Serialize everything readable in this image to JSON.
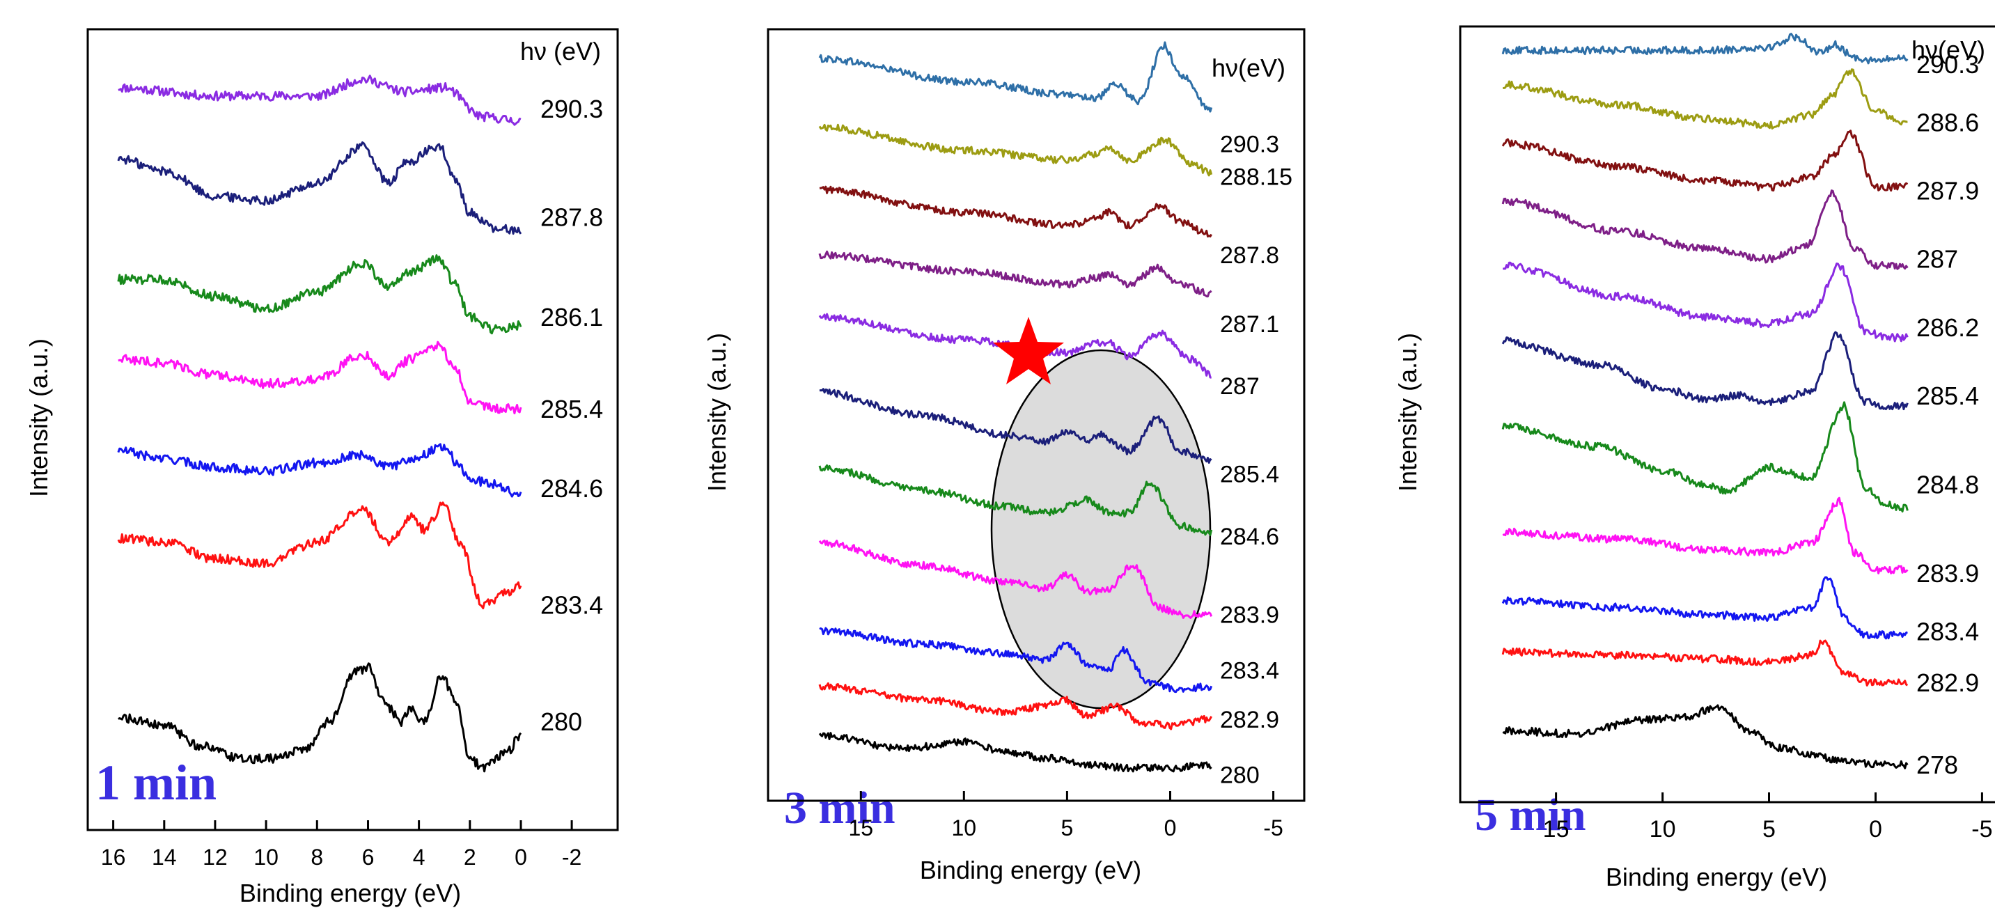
{
  "chart_data": [
    {
      "type": "line",
      "panel_label": "1 min",
      "xlabel": "Binding energy (eV)",
      "ylabel": "Intensity (a.u.)",
      "legend_title": "hν (eV)",
      "xlim": [
        17,
        -3.8
      ],
      "xticks": [
        16,
        14,
        12,
        10,
        8,
        6,
        4,
        2,
        0,
        -2
      ],
      "xtick_labels": [
        "16",
        "14",
        "12",
        "10",
        "8",
        "6",
        "4",
        "2",
        "0",
        "-2"
      ],
      "series": [
        {
          "name": "290.3",
          "color": "#8a2be2",
          "offset": 6.3,
          "label_offset": 6.05,
          "x": [
            15.8,
            12,
            8,
            6.2,
            4.5,
            3,
            1.5,
            0
          ],
          "y": [
            0.0,
            -0.1,
            -0.1,
            0.1,
            -0.05,
            0.0,
            -0.35,
            -0.4
          ]
        },
        {
          "name": "287.8",
          "color": "#1b1f7a",
          "offset": 5.1,
          "label_offset": 4.75,
          "x": [
            15.8,
            14,
            12,
            10,
            8,
            6.2,
            5.2,
            4.5,
            3.2,
            2.6,
            2,
            1,
            0
          ],
          "y": [
            0.35,
            0.2,
            -0.1,
            -0.15,
            0.05,
            0.5,
            0.05,
            0.3,
            0.5,
            0.1,
            -0.3,
            -0.5,
            -0.5
          ]
        },
        {
          "name": "286.1",
          "color": "#17891b",
          "offset": 3.95,
          "label_offset": 3.55,
          "x": [
            15.8,
            14,
            12,
            10,
            8,
            6.2,
            5.2,
            4.3,
            3.2,
            2.6,
            2,
            1,
            0
          ],
          "y": [
            0.05,
            0.05,
            -0.15,
            -0.3,
            -0.1,
            0.25,
            -0.05,
            0.15,
            0.3,
            0.0,
            -0.4,
            -0.55,
            -0.5
          ]
        },
        {
          "name": "285.4",
          "color": "#ff12f3",
          "offset": 2.95,
          "label_offset": 2.45,
          "x": [
            15.8,
            14,
            12,
            10,
            8,
            6.2,
            5.2,
            4.3,
            3.2,
            2.6,
            2,
            1,
            0
          ],
          "y": [
            0.1,
            0.05,
            -0.1,
            -0.2,
            -0.15,
            0.15,
            -0.1,
            0.1,
            0.25,
            0.0,
            -0.4,
            -0.5,
            -0.5
          ]
        },
        {
          "name": "284.6",
          "color": "#1316f0",
          "offset": 1.85,
          "label_offset": 1.5,
          "x": [
            15.8,
            14,
            12,
            10,
            8,
            6.2,
            5.2,
            4.3,
            3.0,
            2.4,
            2,
            1,
            0
          ],
          "y": [
            0.1,
            0.0,
            -0.1,
            -0.15,
            -0.05,
            0.05,
            -0.1,
            0.0,
            0.15,
            -0.1,
            -0.25,
            -0.3,
            -0.45
          ]
        },
        {
          "name": "283.4",
          "color": "#ff1111",
          "offset": 0.85,
          "label_offset": 0.1,
          "x": [
            15.8,
            14,
            12,
            10,
            8,
            6.2,
            5.2,
            4.3,
            3.8,
            3.0,
            2.4,
            1.5,
            0.5,
            0
          ],
          "y": [
            0.05,
            0.0,
            -0.2,
            -0.25,
            0.0,
            0.4,
            0.0,
            0.3,
            0.15,
            0.45,
            0.0,
            -0.75,
            -0.6,
            -0.5
          ]
        },
        {
          "name": "280",
          "color": "#000000",
          "offset": -1.3,
          "label_offset": -1.3,
          "x": [
            15.8,
            14,
            12.5,
            11,
            10,
            8.5,
            7.5,
            6.5,
            6,
            5.3,
            4.7,
            4.3,
            3.8,
            3.1,
            2.5,
            2,
            1.5,
            0.5,
            0
          ],
          "y": [
            0.05,
            -0.05,
            -0.3,
            -0.45,
            -0.45,
            -0.35,
            0.0,
            0.6,
            0.65,
            0.2,
            0.0,
            0.15,
            0.0,
            0.55,
            0.2,
            -0.45,
            -0.55,
            -0.35,
            -0.15
          ]
        }
      ]
    },
    {
      "type": "line",
      "panel_label": "3 min",
      "xlabel": "Binding energy (eV)",
      "ylabel": "Intensity (a.u.)",
      "legend_title": "hν(eV)",
      "xlim": [
        19.5,
        -6.5
      ],
      "xticks": [
        15,
        10,
        5,
        0,
        -5
      ],
      "xtick_labels": [
        "15",
        "10",
        "5",
        "0",
        "-5"
      ],
      "series": [
        {
          "name": "290.3",
          "color": "#2e6fa7",
          "offset": 10.9,
          "label_offset": 10.05,
          "x": [
            17,
            10,
            5,
            3.5,
            2.7,
            1.5,
            0.3,
            -0.5,
            -2
          ],
          "y": [
            0.45,
            0.1,
            -0.1,
            -0.15,
            0.05,
            -0.2,
            0.65,
            0.2,
            -0.35
          ]
        },
        {
          "name": "288.15",
          "color": "#9c9c12",
          "offset": 9.95,
          "label_offset": 9.55,
          "x": [
            17,
            10,
            5,
            3.5,
            3,
            2,
            0.2,
            -1,
            -2
          ],
          "y": [
            0.35,
            0.0,
            -0.15,
            -0.05,
            0.05,
            -0.15,
            0.15,
            -0.2,
            -0.35
          ]
        },
        {
          "name": "287.8",
          "color": "#821011",
          "offset": 9.0,
          "label_offset": 8.35,
          "x": [
            17,
            10,
            5,
            3.5,
            3,
            2,
            0.5,
            -0.5,
            -2
          ],
          "y": [
            0.35,
            0.0,
            -0.2,
            -0.1,
            0.0,
            -0.2,
            0.1,
            -0.15,
            -0.35
          ]
        },
        {
          "name": "287.1",
          "color": "#7e1f87",
          "offset": 8.1,
          "label_offset": 7.3,
          "x": [
            17,
            10,
            5,
            3.5,
            3,
            2,
            0.6,
            -0.5,
            -2
          ],
          "y": [
            0.25,
            0.0,
            -0.2,
            -0.1,
            -0.05,
            -0.2,
            0.05,
            -0.2,
            -0.35
          ]
        },
        {
          "name": "287",
          "color": "#8a2be2",
          "offset": 7.1,
          "label_offset": 6.35,
          "x": [
            17,
            10,
            5,
            3.5,
            3,
            2,
            0.5,
            -1,
            -2
          ],
          "y": [
            0.3,
            -0.05,
            -0.25,
            -0.1,
            -0.1,
            -0.3,
            0.05,
            -0.35,
            -0.6
          ]
        },
        {
          "name": "285.4",
          "color": "#1b1f7a",
          "offset": 5.9,
          "label_offset": 5.0,
          "x": [
            17,
            12,
            8,
            6,
            5,
            4,
            3.5,
            2,
            0.6,
            -0.5,
            -2
          ],
          "y": [
            0.35,
            0.0,
            -0.3,
            -0.4,
            -0.25,
            -0.4,
            -0.3,
            -0.55,
            -0.05,
            -0.55,
            -0.7
          ]
        },
        {
          "name": "284.6",
          "color": "#17891b",
          "offset": 4.75,
          "label_offset": 4.05,
          "x": [
            17,
            12,
            8,
            6,
            4,
            3,
            2,
            1,
            -0.5,
            -2
          ],
          "y": [
            0.35,
            0.0,
            -0.25,
            -0.35,
            -0.15,
            -0.35,
            -0.35,
            0.1,
            -0.55,
            -0.65
          ]
        },
        {
          "name": "283.9",
          "color": "#ff12f3",
          "offset": 3.55,
          "label_offset": 2.85,
          "x": [
            17,
            12,
            8,
            6,
            5,
            4,
            3,
            1.8,
            0.5,
            -0.5,
            -2
          ],
          "y": [
            0.4,
            0.05,
            -0.2,
            -0.3,
            -0.1,
            -0.35,
            -0.3,
            0.05,
            -0.6,
            -0.7,
            -0.7
          ]
        },
        {
          "name": "283.4",
          "color": "#1316f0",
          "offset": 2.35,
          "label_offset": 2.0,
          "x": [
            17,
            12,
            8,
            6,
            5,
            4,
            3,
            2.3,
            1,
            -0.5,
            -2
          ],
          "y": [
            0.25,
            0.05,
            -0.1,
            -0.2,
            0.05,
            -0.25,
            -0.35,
            -0.05,
            -0.55,
            -0.65,
            -0.6
          ]
        },
        {
          "name": "282.9",
          "color": "#ff1111",
          "offset": 1.6,
          "label_offset": 1.25,
          "x": [
            17,
            12,
            8,
            6,
            5.2,
            4,
            2.6,
            1.5,
            0,
            -2
          ],
          "y": [
            0.15,
            -0.05,
            -0.25,
            -0.15,
            -0.05,
            -0.3,
            -0.15,
            -0.4,
            -0.45,
            -0.35
          ]
        },
        {
          "name": "280",
          "color": "#000000",
          "offset": 0.9,
          "label_offset": 0.4,
          "x": [
            17,
            13,
            10,
            8,
            6,
            4,
            2,
            0,
            -2
          ],
          "y": [
            0.1,
            -0.1,
            0.0,
            -0.15,
            -0.25,
            -0.35,
            -0.4,
            -0.4,
            -0.35
          ]
        }
      ]
    },
    {
      "type": "line",
      "panel_label": "5 min",
      "xlabel": "Binding energy (eV)",
      "ylabel": "Intensity (a.u.)",
      "legend_title": "hν(eV)",
      "xlim": [
        19.5,
        -6
      ],
      "xticks": [
        15,
        10,
        5,
        0,
        -5
      ],
      "xtick_labels": [
        "15",
        "10",
        "5",
        "0",
        "-5"
      ],
      "series": [
        {
          "name": "290.3",
          "color": "#2e6fa7",
          "offset": 10.95,
          "label_offset": 10.8,
          "x": [
            17.5,
            12,
            8,
            5,
            3.8,
            2.5,
            2,
            1,
            0,
            -1.5
          ],
          "y": [
            0.05,
            0.05,
            0.05,
            0.1,
            0.25,
            0.0,
            0.15,
            -0.05,
            -0.1,
            -0.05
          ]
        },
        {
          "name": "288.6",
          "color": "#9c9c12",
          "offset": 10.15,
          "label_offset": 9.95,
          "x": [
            17.5,
            12,
            8,
            5,
            3,
            2,
            1.2,
            0,
            -1.5
          ],
          "y": [
            0.35,
            0.05,
            -0.15,
            -0.25,
            -0.1,
            0.2,
            0.55,
            -0.05,
            -0.2
          ]
        },
        {
          "name": "287.9",
          "color": "#821011",
          "offset": 9.3,
          "label_offset": 8.95,
          "x": [
            17.5,
            12,
            8,
            5,
            3,
            2,
            1.2,
            0,
            -1.5
          ],
          "y": [
            0.35,
            0.0,
            -0.2,
            -0.3,
            -0.15,
            0.15,
            0.5,
            -0.3,
            -0.3
          ]
        },
        {
          "name": "287",
          "color": "#7e1f87",
          "offset": 8.35,
          "label_offset": 7.95,
          "x": [
            17.5,
            12,
            8,
            5,
            3.2,
            2,
            1,
            0,
            -1.5
          ],
          "y": [
            0.45,
            0.0,
            -0.25,
            -0.4,
            -0.2,
            0.55,
            -0.25,
            -0.5,
            -0.5
          ]
        },
        {
          "name": "286.2",
          "color": "#8a2be2",
          "offset": 7.4,
          "label_offset": 6.95,
          "x": [
            17.5,
            12,
            8,
            5,
            3,
            1.7,
            0.5,
            -0.5,
            -1.5
          ],
          "y": [
            0.45,
            0.0,
            -0.3,
            -0.4,
            -0.25,
            0.45,
            -0.5,
            -0.6,
            -0.6
          ]
        },
        {
          "name": "285.4",
          "color": "#1b1f7a",
          "offset": 6.3,
          "label_offset": 5.95,
          "x": [
            17.5,
            13,
            10,
            8,
            6.5,
            5,
            3,
            1.8,
            0.5,
            -0.5,
            -1.5
          ],
          "y": [
            0.45,
            0.1,
            -0.25,
            -0.4,
            -0.35,
            -0.45,
            -0.3,
            0.55,
            -0.45,
            -0.5,
            -0.5
          ]
        },
        {
          "name": "284.8",
          "color": "#17891b",
          "offset": 5.1,
          "label_offset": 4.65,
          "x": [
            17.5,
            13,
            10,
            8,
            7,
            5,
            3,
            1.5,
            0.5,
            -0.5,
            -1.5
          ],
          "y": [
            0.4,
            0.1,
            -0.25,
            -0.45,
            -0.55,
            -0.2,
            -0.35,
            0.7,
            -0.5,
            -0.75,
            -0.8
          ]
        },
        {
          "name": "283.9",
          "color": "#ff12f3",
          "offset": 3.85,
          "label_offset": 3.35,
          "x": [
            17.5,
            12,
            8,
            5,
            3,
            1.7,
            1,
            0,
            -1.5
          ],
          "y": [
            0.1,
            0.0,
            -0.15,
            -0.2,
            -0.05,
            0.55,
            -0.2,
            -0.45,
            -0.45
          ]
        },
        {
          "name": "283.4",
          "color": "#1316f0",
          "offset": 2.9,
          "label_offset": 2.5,
          "x": [
            17.5,
            12,
            8,
            5,
            3,
            2.2,
            1.5,
            0.5,
            -1.5
          ],
          "y": [
            0.05,
            -0.05,
            -0.15,
            -0.2,
            -0.05,
            0.4,
            -0.2,
            -0.45,
            -0.45
          ]
        },
        {
          "name": "282.9",
          "color": "#ff1111",
          "offset": 2.15,
          "label_offset": 1.75,
          "x": [
            17.5,
            12,
            8,
            5,
            3,
            2.5,
            1.5,
            0.5,
            -1.5
          ],
          "y": [
            0.05,
            0.0,
            -0.05,
            -0.1,
            0.0,
            0.2,
            -0.25,
            -0.4,
            -0.4
          ]
        },
        {
          "name": "278",
          "color": "#000000",
          "offset": 1.05,
          "label_offset": 0.55,
          "x": [
            17.5,
            14,
            11,
            9,
            7.3,
            6,
            4.5,
            3,
            1.5,
            0,
            -1.5
          ],
          "y": [
            0.0,
            -0.05,
            0.15,
            0.2,
            0.35,
            0.0,
            -0.25,
            -0.35,
            -0.45,
            -0.5,
            -0.5
          ]
        }
      ]
    }
  ]
}
